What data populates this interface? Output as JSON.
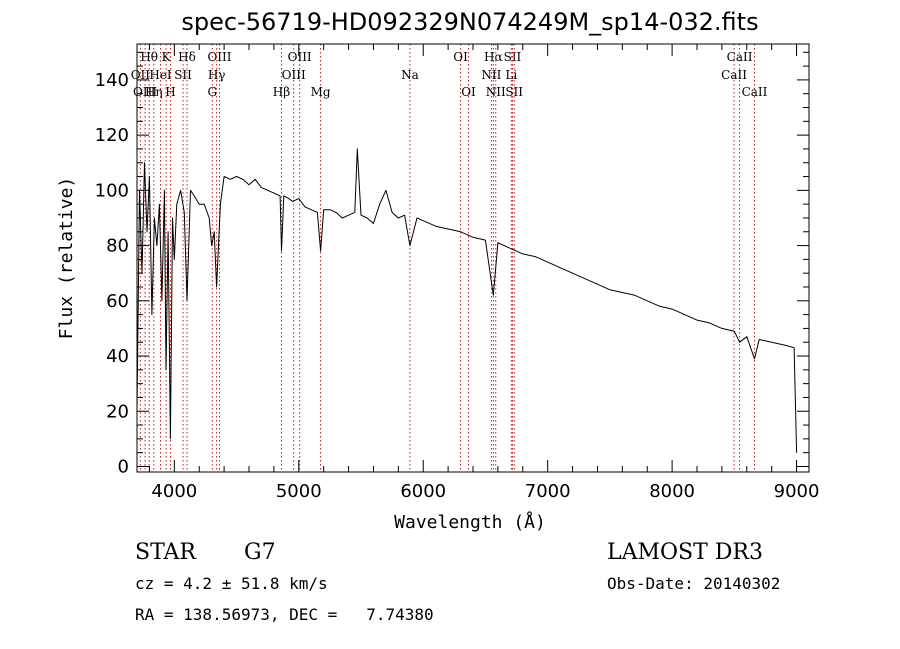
{
  "chart_data": {
    "type": "line",
    "title": "spec-56719-HD092329N074249M_sp14-032.fits",
    "xlabel": "Wavelength (Å)",
    "ylabel": "Flux (relative)",
    "xlim": [
      3700,
      9100
    ],
    "ylim": [
      -2,
      153
    ],
    "xticks": [
      4000,
      5000,
      6000,
      7000,
      8000,
      9000
    ],
    "yticks": [
      0,
      20,
      40,
      60,
      80,
      100,
      120,
      140
    ],
    "series": [
      {
        "name": "spectrum",
        "x": [
          3700,
          3720,
          3740,
          3760,
          3780,
          3800,
          3820,
          3840,
          3860,
          3880,
          3900,
          3920,
          3933,
          3950,
          3968,
          3985,
          4000,
          4020,
          4050,
          4080,
          4102,
          4130,
          4160,
          4200,
          4240,
          4280,
          4300,
          4320,
          4340,
          4370,
          4400,
          4450,
          4500,
          4550,
          4600,
          4650,
          4700,
          4750,
          4800,
          4850,
          4861,
          4880,
          4920,
          4950,
          5000,
          5050,
          5100,
          5150,
          5175,
          5200,
          5250,
          5300,
          5350,
          5400,
          5450,
          5470,
          5500,
          5550,
          5600,
          5650,
          5700,
          5750,
          5800,
          5850,
          5893,
          5950,
          6000,
          6100,
          6200,
          6300,
          6400,
          6500,
          6563,
          6600,
          6700,
          6800,
          6900,
          7000,
          7100,
          7200,
          7300,
          7400,
          7500,
          7600,
          7700,
          7800,
          7900,
          8000,
          8100,
          8200,
          8300,
          8400,
          8500,
          8542,
          8600,
          8662,
          8700,
          8800,
          8900,
          8980,
          9000
        ],
        "values": [
          20,
          100,
          70,
          110,
          85,
          105,
          55,
          90,
          80,
          95,
          60,
          100,
          35,
          85,
          10,
          90,
          75,
          95,
          100,
          92,
          60,
          100,
          98,
          95,
          95,
          90,
          80,
          85,
          65,
          95,
          105,
          104,
          105,
          104,
          102,
          104,
          101,
          100,
          99,
          98,
          78,
          98,
          97,
          96,
          97,
          94,
          93,
          92,
          78,
          93,
          93,
          92,
          90,
          91,
          92,
          115,
          91,
          90,
          88,
          95,
          100,
          92,
          90,
          91,
          80,
          90,
          89,
          87,
          86,
          85,
          83,
          82,
          62,
          81,
          79,
          77,
          76,
          74,
          72,
          70,
          68,
          66,
          64,
          63,
          62,
          60,
          58,
          57,
          55,
          53,
          52,
          50,
          49,
          45,
          47,
          39,
          46,
          45,
          44,
          43,
          5
        ]
      }
    ],
    "lines": [
      {
        "name": "Hθ",
        "wave": 3798,
        "row": 0
      },
      {
        "name": "OII",
        "wave": 3727,
        "row": 1
      },
      {
        "name": "OIII",
        "wave": 3765,
        "row": 2
      },
      {
        "name": "Hη",
        "wave": 3835,
        "row": 2
      },
      {
        "name": "HeI",
        "wave": 3889,
        "row": 1
      },
      {
        "name": "K",
        "wave": 3934,
        "row": 0
      },
      {
        "name": "SII",
        "wave": 4070,
        "row": 1
      },
      {
        "name": "H",
        "wave": 3969,
        "row": 2
      },
      {
        "name": "Hδ",
        "wave": 4102,
        "row": 0
      },
      {
        "name": "OIII",
        "wave": 4363,
        "row": 0
      },
      {
        "name": "Hγ",
        "wave": 4340,
        "row": 1
      },
      {
        "name": "G",
        "wave": 4305,
        "row": 2
      },
      {
        "name": "Hβ",
        "wave": 4861,
        "row": 2
      },
      {
        "name": "OIII",
        "wave": 5007,
        "row": 0
      },
      {
        "name": "OIII",
        "wave": 4959,
        "row": 1
      },
      {
        "name": "Mg",
        "wave": 5175,
        "row": 2
      },
      {
        "name": "Na",
        "wave": 5893,
        "row": 1
      },
      {
        "name": "OI",
        "wave": 6300,
        "row": 0
      },
      {
        "name": "OI",
        "wave": 6364,
        "row": 2
      },
      {
        "name": "Hα",
        "wave": 6563,
        "row": 0
      },
      {
        "name": "NII",
        "wave": 6548,
        "row": 1
      },
      {
        "name": "NII",
        "wave": 6583,
        "row": 2
      },
      {
        "name": "SII",
        "wave": 6717,
        "row": 0
      },
      {
        "name": "Li",
        "wave": 6708,
        "row": 1
      },
      {
        "name": "SII",
        "wave": 6731,
        "row": 2
      },
      {
        "name": "CaII",
        "wave": 8542,
        "row": 0
      },
      {
        "name": "CaII",
        "wave": 8498,
        "row": 1
      },
      {
        "name": "CaII",
        "wave": 8662,
        "row": 2
      }
    ]
  },
  "info": {
    "class": "STAR",
    "subclass": "G7",
    "survey": "LAMOST DR3",
    "cz": "cz = 4.2 ± 51.8 km/s",
    "obs_date": "Obs-Date: 20140302",
    "coords": "RA = 138.56973, DEC =   7.74380"
  },
  "colors": {
    "axis": "#000000",
    "line_marker": "#b22222"
  }
}
